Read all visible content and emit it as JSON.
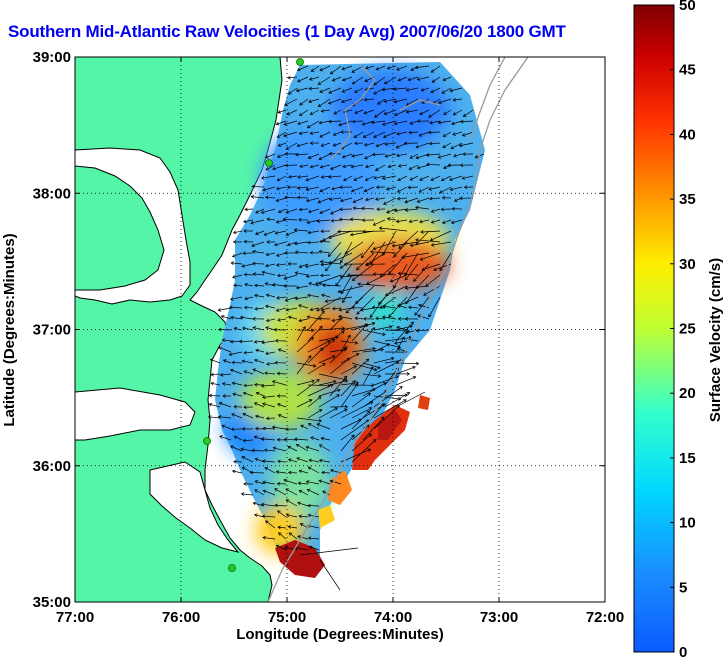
{
  "title": "Southern Mid-Atlantic Raw Velocities (1 Day Avg) 2007/06/20 1800 GMT",
  "map": {
    "x_axis_label": "Longitude (Degrees:Minutes)",
    "y_axis_label": "Latitude (Degrees:Minutes)",
    "x_ticks": [
      {
        "label": "77:00",
        "value": -77
      },
      {
        "label": "76:00",
        "value": -76
      },
      {
        "label": "75:00",
        "value": -75
      },
      {
        "label": "74:00",
        "value": -74
      },
      {
        "label": "73:00",
        "value": -73
      },
      {
        "label": "72:00",
        "value": -72
      }
    ],
    "y_ticks": [
      {
        "label": "39:00",
        "value": 39
      },
      {
        "label": "38:00",
        "value": 38
      },
      {
        "label": "37:00",
        "value": 37
      },
      {
        "label": "36:00",
        "value": 36
      },
      {
        "label": "35:00",
        "value": 35
      }
    ],
    "lon_range": [
      -77,
      -72
    ],
    "lat_range": [
      35,
      39
    ],
    "grid": "dotted",
    "colors": {
      "land": "#55f5a8",
      "water": "#ffffff",
      "coastline": "#000000",
      "bathymetry": "#999999",
      "station": "#22cc22"
    }
  },
  "colorbar": {
    "label": "Surface Velocity (cm/s)",
    "ticks": [
      "0",
      "5",
      "10",
      "15",
      "20",
      "25",
      "30",
      "35",
      "40",
      "45",
      "50"
    ],
    "range": [
      0,
      50
    ],
    "colormap": "jet"
  }
}
